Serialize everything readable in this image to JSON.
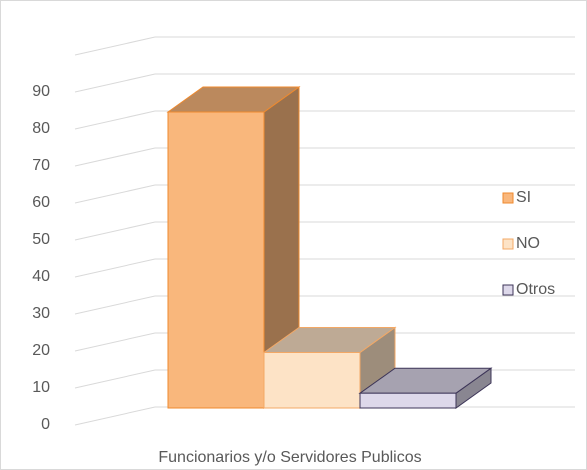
{
  "chart_data": {
    "type": "bar3d",
    "categories": [
      "Funcionarios y/o Servidores Publicos"
    ],
    "series": [
      {
        "name": "SI",
        "color": "#f9b77c",
        "values": [
          80
        ]
      },
      {
        "name": "NO",
        "color": "#fde3c6",
        "values": [
          15
        ]
      },
      {
        "name": "Otros",
        "color": "#ddd8ea",
        "values": [
          4
        ]
      }
    ],
    "ylim": [
      0,
      100
    ],
    "yticks": [
      0,
      10,
      20,
      30,
      40,
      50,
      60,
      70,
      80,
      90
    ],
    "grid": true,
    "legend": "right"
  }
}
